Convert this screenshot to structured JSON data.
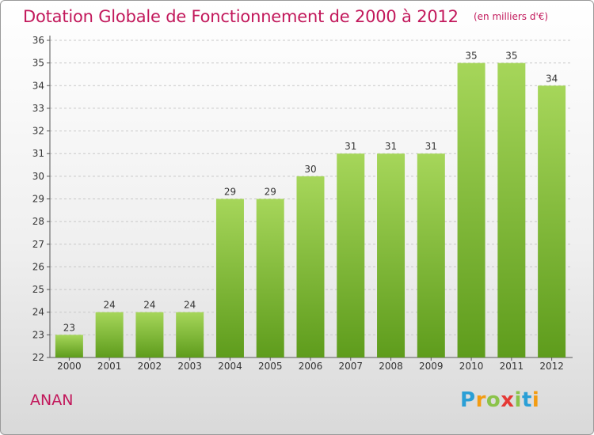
{
  "title": "Dotation Globale de Fonctionnement de 2000 à 2012",
  "unit": "(en milliers d'€)",
  "commune": "ANAN",
  "logo": {
    "letters": [
      "P",
      "r",
      "o",
      "x",
      "i",
      "t",
      "i"
    ],
    "colors": [
      "#2a9fd6",
      "#f39c12",
      "#8bc34a",
      "#e53935",
      "#8bc34a",
      "#2a9fd6",
      "#f39c12"
    ]
  },
  "colors": {
    "bar_top": "#a6d65a",
    "bar_bottom": "#5e9c1c",
    "accent": "#c2185b"
  },
  "chart_data": {
    "type": "bar",
    "categories": [
      "2000",
      "2001",
      "2002",
      "2003",
      "2004",
      "2005",
      "2006",
      "2007",
      "2008",
      "2009",
      "2010",
      "2011",
      "2012"
    ],
    "values": [
      23,
      24,
      24,
      24,
      29,
      29,
      30,
      31,
      31,
      31,
      35,
      35,
      34
    ],
    "ylim": [
      22,
      36
    ],
    "yticks": [
      22,
      23,
      24,
      25,
      26,
      27,
      28,
      29,
      30,
      31,
      32,
      33,
      34,
      35,
      36
    ],
    "grid": true,
    "title": "Dotation Globale de Fonctionnement de 2000 à 2012",
    "xlabel": "",
    "ylabel": ""
  }
}
